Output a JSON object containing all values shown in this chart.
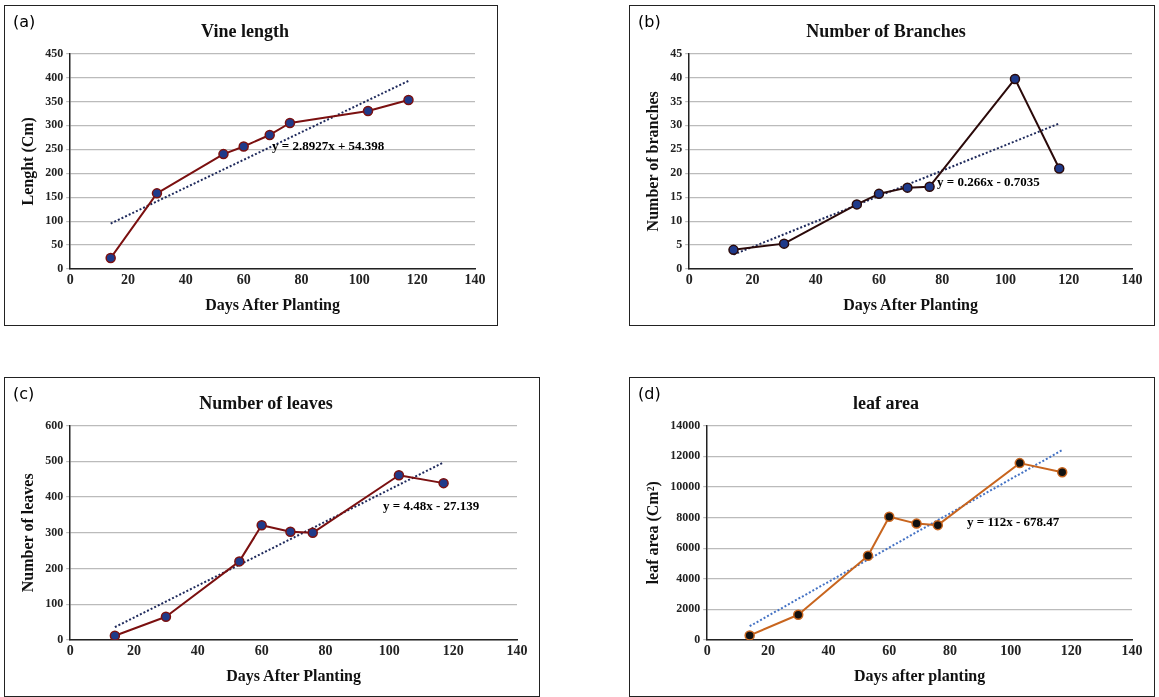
{
  "chart_data": [
    {
      "type": "line",
      "title": "Vine length",
      "xlabel": "Days After Planting",
      "ylabel": "Lenght (Cm)",
      "xlim": [
        0,
        140
      ],
      "xticks": [
        0,
        20,
        40,
        60,
        80,
        100,
        120,
        140
      ],
      "ylim": [
        0,
        450
      ],
      "yticks": [
        0,
        50,
        100,
        150,
        200,
        250,
        300,
        350,
        400,
        450
      ],
      "grid": "y",
      "legend": false,
      "annotations": [
        "(a)",
        "y = 2.8927x + 54.398"
      ],
      "series": [
        {
          "color": "#7b1010",
          "colors": [
            "#1f3a8a",
            "#1f3a8a",
            "#1f3a8a",
            "#1f3a8a",
            "#1f3a8a",
            "#1f3a8a",
            "#1f3a8a",
            "#1f3a8a"
          ],
          "marker": "circle",
          "line_style": "solid",
          "x": [
            14,
            30,
            53,
            60,
            69,
            76,
            103,
            117
          ],
          "values": [
            23,
            158,
            240,
            256,
            280,
            305,
            330,
            353
          ]
        },
        {
          "type": "line",
          "color": "#1f2a5c",
          "marker": "none",
          "line_style": "dotted",
          "x": [
            14,
            117
          ],
          "values": [
            95,
            393
          ]
        }
      ]
    },
    {
      "type": "line",
      "title": "Number of Branches",
      "xlabel": "Days After Planting",
      "ylabel": "Number of branches",
      "xlim": [
        0,
        140
      ],
      "xticks": [
        0,
        20,
        40,
        60,
        80,
        100,
        120,
        140
      ],
      "ylim": [
        0,
        45
      ],
      "yticks": [
        0,
        5,
        10,
        15,
        20,
        25,
        30,
        35,
        40,
        45
      ],
      "grid": "y",
      "legend": false,
      "annotations": [
        "(b)",
        "y = 0.266x - 0.7035"
      ],
      "series": [
        {
          "color": "#2b0a0a",
          "colors": [
            "#1f3a8a",
            "#1f3a8a",
            "#1f3a8a",
            "#1f3a8a",
            "#1f3a8a",
            "#1f3a8a",
            "#1f3a8a",
            "#1f3a8a"
          ],
          "marker": "circle",
          "line_style": "solid",
          "x": [
            14,
            30,
            53,
            60,
            69,
            76,
            103,
            117
          ],
          "values": [
            4,
            5.3,
            13.5,
            15.7,
            17,
            17.2,
            39.7,
            21
          ]
        },
        {
          "type": "line",
          "color": "#1f2a5c",
          "marker": "none",
          "line_style": "dotted",
          "x": [
            14,
            117
          ],
          "values": [
            3,
            30.4
          ]
        }
      ]
    },
    {
      "type": "line",
      "title": "Number of leaves",
      "xlabel": "Days After Planting",
      "ylabel": "Number of leaves",
      "xlim": [
        0,
        140
      ],
      "xticks": [
        0,
        20,
        40,
        60,
        80,
        100,
        120,
        140
      ],
      "ylim": [
        0,
        600
      ],
      "yticks": [
        0,
        100,
        200,
        300,
        400,
        500,
        600
      ],
      "grid": "y",
      "legend": false,
      "annotations": [
        "(c)",
        "y = 4.48x - 27.139"
      ],
      "series": [
        {
          "color": "#7b1010",
          "colors": [
            "#1f3a8a",
            "#1f3a8a",
            "#1f3a8a",
            "#1f3a8a",
            "#1f3a8a",
            "#1f3a8a",
            "#1f3a8a",
            "#1f3a8a"
          ],
          "marker": "circle",
          "line_style": "solid",
          "x": [
            14,
            30,
            53,
            60,
            69,
            76,
            103,
            117
          ],
          "values": [
            12,
            65,
            220,
            321,
            303,
            300,
            461,
            439
          ]
        },
        {
          "type": "line",
          "color": "#1f2a5c",
          "marker": "none",
          "line_style": "dotted",
          "x": [
            14,
            117
          ],
          "values": [
            36,
            497
          ]
        }
      ]
    },
    {
      "type": "line",
      "title": "leaf area",
      "xlabel": "Days after planting",
      "ylabel": "leaf area (Cm²)",
      "xlim": [
        0,
        140
      ],
      "xticks": [
        0,
        20,
        40,
        60,
        80,
        100,
        120,
        140
      ],
      "ylim": [
        0,
        14000
      ],
      "yticks": [
        0,
        2000,
        4000,
        6000,
        8000,
        10000,
        12000,
        14000
      ],
      "grid": "y",
      "legend": false,
      "annotations": [
        "(d)",
        "y = 112x - 678.47"
      ],
      "series": [
        {
          "color": "#c8651e",
          "colors": [
            "#111111",
            "#111111",
            "#111111",
            "#111111",
            "#111111",
            "#111111",
            "#111111",
            "#111111"
          ],
          "marker": "circle",
          "line_style": "solid",
          "x": [
            14,
            30,
            53,
            60,
            69,
            76,
            103,
            117
          ],
          "values": [
            300,
            1650,
            5500,
            8050,
            7600,
            7500,
            11550,
            10950
          ]
        },
        {
          "type": "line",
          "color": "#4472c4",
          "marker": "none",
          "line_style": "dotted",
          "x": [
            14,
            117
          ],
          "values": [
            900,
            12400
          ]
        }
      ]
    }
  ]
}
